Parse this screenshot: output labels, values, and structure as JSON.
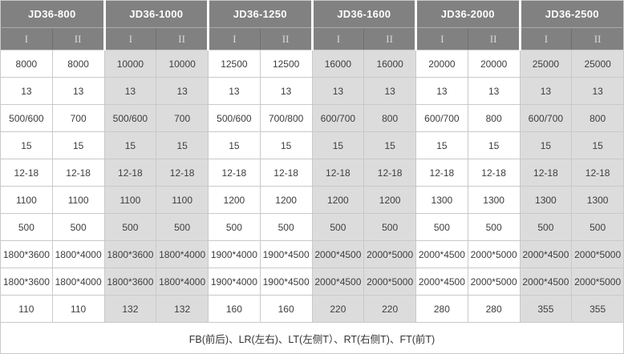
{
  "colors": {
    "header_bg": "#818181",
    "header_text": "#ffffff",
    "subheader_text": "#d9d9d9",
    "shade_col_bg": "#dcdcdc",
    "white_col_bg": "#ffffff",
    "grid_border": "#c9c9c9",
    "group_separator": "#ffffff",
    "cell_text": "#3d3d3d"
  },
  "table": {
    "groups": [
      "JD36-800",
      "JD36-1000",
      "JD36-1250",
      "JD36-1600",
      "JD36-2000",
      "JD36-2500"
    ],
    "sub_columns": [
      "I",
      "II"
    ],
    "rows": [
      [
        "8000",
        "8000",
        "10000",
        "10000",
        "12500",
        "12500",
        "16000",
        "16000",
        "20000",
        "20000",
        "25000",
        "25000"
      ],
      [
        "13",
        "13",
        "13",
        "13",
        "13",
        "13",
        "13",
        "13",
        "13",
        "13",
        "13",
        "13"
      ],
      [
        "500/600",
        "700",
        "500/600",
        "700",
        "500/600",
        "700/800",
        "600/700",
        "800",
        "600/700",
        "800",
        "600/700",
        "800"
      ],
      [
        "15",
        "15",
        "15",
        "15",
        "15",
        "15",
        "15",
        "15",
        "15",
        "15",
        "15",
        "15"
      ],
      [
        "12-18",
        "12-18",
        "12-18",
        "12-18",
        "12-18",
        "12-18",
        "12-18",
        "12-18",
        "12-18",
        "12-18",
        "12-18",
        "12-18"
      ],
      [
        "1100",
        "1100",
        "1100",
        "1100",
        "1200",
        "1200",
        "1200",
        "1200",
        "1300",
        "1300",
        "1300",
        "1300"
      ],
      [
        "500",
        "500",
        "500",
        "500",
        "500",
        "500",
        "500",
        "500",
        "500",
        "500",
        "500",
        "500"
      ],
      [
        "1800*3600",
        "1800*4000",
        "1800*3600",
        "1800*4000",
        "1900*4000",
        "1900*4500",
        "2000*4500",
        "2000*5000",
        "2000*4500",
        "2000*5000",
        "2000*4500",
        "2000*5000"
      ],
      [
        "1800*3600",
        "1800*4000",
        "1800*3600",
        "1800*4000",
        "1900*4000",
        "1900*4500",
        "2000*4500",
        "2000*5000",
        "2000*4500",
        "2000*5000",
        "2000*4500",
        "2000*5000"
      ],
      [
        "110",
        "110",
        "132",
        "132",
        "160",
        "160",
        "220",
        "220",
        "280",
        "280",
        "355",
        "355"
      ]
    ],
    "footer": "FB(前后)、LR(左右)、LT(左侧T）、RT(右侧T)、FT(前T)"
  }
}
